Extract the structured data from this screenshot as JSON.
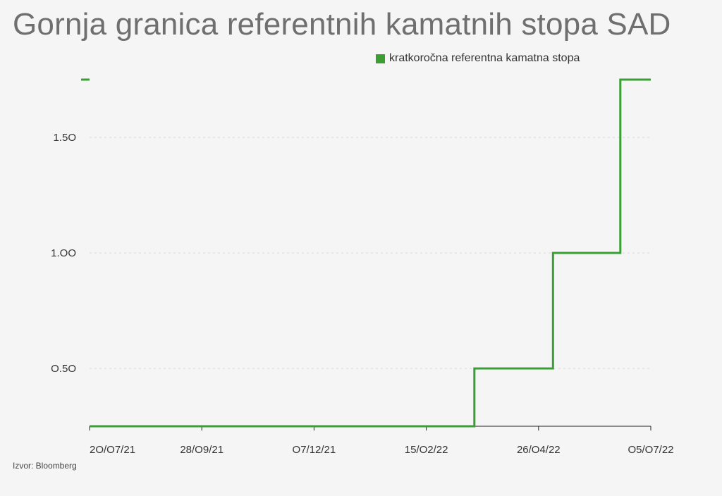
{
  "colors": {
    "series": "#3a9e35",
    "gridline": "#d9d9d9",
    "axis": "#222222",
    "background": "#f5f5f5"
  },
  "source_note": "Izvor: Bloomberg",
  "chart_data": {
    "type": "line",
    "title": "Gornja granica referentnih kamatnih stopa SAD",
    "xlabel": "",
    "ylabel": "",
    "step": true,
    "grid": "horizontal-dotted",
    "legend_position": "top-right",
    "x_range": [
      "2021-07-20",
      "2022-07-05"
    ],
    "ylim": [
      0.25,
      1.75
    ],
    "y_ticks": [
      {
        "value": 0.5,
        "label": "O.5O"
      },
      {
        "value": 1.0,
        "label": "1.OO"
      },
      {
        "value": 1.5,
        "label": "1.5O"
      }
    ],
    "x_ticks": [
      {
        "date": "2021-07-20",
        "label": "2O/O7/21"
      },
      {
        "date": "2021-09-28",
        "label": "28/O9/21"
      },
      {
        "date": "2021-12-07",
        "label": "O7/12/21"
      },
      {
        "date": "2022-02-15",
        "label": "15/O2/22"
      },
      {
        "date": "2022-04-26",
        "label": "26/O4/22"
      },
      {
        "date": "2022-07-05",
        "label": "O5/O7/22"
      }
    ],
    "series": [
      {
        "name": "kratkoročna referentna kamatna stopa",
        "points": [
          {
            "x": "2021-07-20",
            "y": 0.25
          },
          {
            "x": "2022-03-17",
            "y": 0.25
          },
          {
            "x": "2022-03-17",
            "y": 0.5
          },
          {
            "x": "2022-05-05",
            "y": 0.5
          },
          {
            "x": "2022-05-05",
            "y": 1.0
          },
          {
            "x": "2022-06-16",
            "y": 1.0
          },
          {
            "x": "2022-06-16",
            "y": 1.75
          },
          {
            "x": "2022-07-05",
            "y": 1.75
          }
        ]
      }
    ]
  }
}
